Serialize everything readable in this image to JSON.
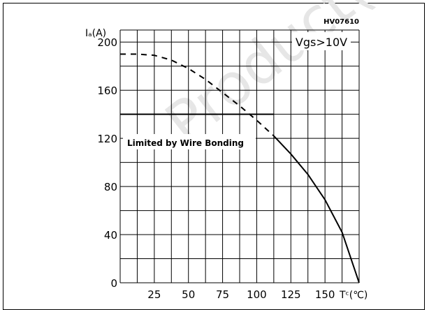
{
  "chart_data": {
    "type": "line",
    "code": "HV07610",
    "ylabel": "Iₐ(A)",
    "xlabel": "Tᶜ(℃)",
    "legend_note": "Vgs>10V",
    "annotation": "Limited by Wire Bonding",
    "x_ticks": [
      "25",
      "50",
      "75",
      "100",
      "125",
      "150"
    ],
    "y_ticks": [
      "0",
      "40",
      "80",
      "120",
      "160",
      "200"
    ],
    "xlim": [
      0,
      175
    ],
    "ylim": [
      0,
      210
    ],
    "series": [
      {
        "style": "dashed",
        "x": [
          0,
          12,
          25,
          37.5,
          50,
          62.5,
          75,
          87.5,
          100,
          112.5
        ],
        "y": [
          190,
          190,
          189,
          185,
          178,
          169,
          158,
          147,
          135,
          122
        ]
      },
      {
        "style": "solid",
        "x": [
          112.5,
          125,
          137.5,
          150,
          162.5,
          175
        ],
        "y": [
          122,
          107,
          90,
          69,
          42,
          0
        ]
      },
      {
        "style": "solid",
        "x": [
          0,
          112.5
        ],
        "y": [
          140,
          140
        ]
      }
    ]
  },
  "watermark": "Product(s) - O"
}
